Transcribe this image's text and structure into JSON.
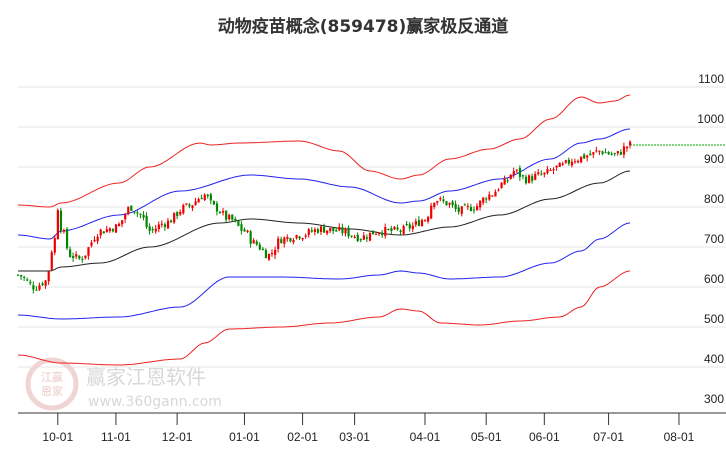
{
  "chart_data": {
    "type": "candlestick",
    "title": "动物疫苗概念(859478)赢家极反通道",
    "xlabel": "",
    "ylabel": "",
    "ylim": [
      300,
      1100
    ],
    "yticks": [
      300,
      400,
      500,
      600,
      700,
      800,
      900,
      1000,
      1100
    ],
    "x_unit": "trading day index",
    "xlim": [
      0,
      230
    ],
    "xticks": [
      {
        "label": "10-01",
        "day": 13
      },
      {
        "label": "11-01",
        "day": 32
      },
      {
        "label": "12-01",
        "day": 52
      },
      {
        "label": "01-01",
        "day": 74
      },
      {
        "label": "02-01",
        "day": 93
      },
      {
        "label": "03-01",
        "day": 110
      },
      {
        "label": "04-01",
        "day": 133
      },
      {
        "label": "05-01",
        "day": 153
      },
      {
        "label": "06-01",
        "day": 172
      },
      {
        "label": "07-01",
        "day": 193
      },
      {
        "label": "08-01",
        "day": 216
      }
    ],
    "grid": true,
    "close_keypoints": [
      [
        0,
        630
      ],
      [
        5.5,
        600
      ],
      [
        9,
        615
      ],
      [
        12,
        720
      ],
      [
        13,
        800
      ],
      [
        14,
        750
      ],
      [
        17,
        680
      ],
      [
        20,
        670
      ],
      [
        27,
        740
      ],
      [
        32,
        750
      ],
      [
        37,
        800
      ],
      [
        40,
        780
      ],
      [
        43,
        740
      ],
      [
        48,
        760
      ],
      [
        55,
        800
      ],
      [
        61,
        830
      ],
      [
        64,
        800
      ],
      [
        69,
        770
      ],
      [
        74,
        740
      ],
      [
        77,
        710
      ],
      [
        82,
        680
      ],
      [
        86,
        720
      ],
      [
        92,
        730
      ],
      [
        99,
        745
      ],
      [
        105,
        740
      ],
      [
        112,
        725
      ],
      [
        118,
        740
      ],
      [
        125,
        740
      ],
      [
        128,
        750
      ],
      [
        133,
        770
      ],
      [
        136,
        820
      ],
      [
        140,
        810
      ],
      [
        144,
        790
      ],
      [
        149,
        800
      ],
      [
        154,
        830
      ],
      [
        159,
        860
      ],
      [
        162,
        890
      ],
      [
        166,
        870
      ],
      [
        171,
        880
      ],
      [
        177,
        900
      ],
      [
        182,
        920
      ],
      [
        187,
        930
      ],
      [
        190,
        940
      ],
      [
        195,
        930
      ],
      [
        200,
        955
      ]
    ],
    "last_price_line": 955,
    "series": [
      {
        "name": "upper-red",
        "color": "#ee2222",
        "points": [
          [
            0,
            805
          ],
          [
            10.5,
            800
          ],
          [
            14,
            810
          ],
          [
            33,
            860
          ],
          [
            43,
            900
          ],
          [
            59.5,
            960
          ],
          [
            63,
            955
          ],
          [
            72.5,
            960
          ],
          [
            92,
            965
          ],
          [
            105,
            940
          ],
          [
            115,
            890
          ],
          [
            125,
            870
          ],
          [
            131,
            880
          ],
          [
            141,
            920
          ],
          [
            154,
            945
          ],
          [
            164,
            970
          ],
          [
            174,
            1020
          ],
          [
            184,
            1075
          ],
          [
            190,
            1060
          ],
          [
            195,
            1065
          ],
          [
            200,
            1080
          ]
        ]
      },
      {
        "name": "upper-blue",
        "color": "#2222ee",
        "points": [
          [
            0,
            730
          ],
          [
            10.5,
            720
          ],
          [
            14,
            740
          ],
          [
            33,
            780
          ],
          [
            53,
            840
          ],
          [
            76,
            880
          ],
          [
            92,
            870
          ],
          [
            108.5,
            850
          ],
          [
            125,
            810
          ],
          [
            131,
            815
          ],
          [
            141,
            840
          ],
          [
            157.5,
            870
          ],
          [
            174,
            920
          ],
          [
            184,
            960
          ],
          [
            190,
            970
          ],
          [
            200,
            995
          ]
        ]
      },
      {
        "name": "middle-black",
        "color": "#222222",
        "points": [
          [
            0,
            640
          ],
          [
            10.5,
            640
          ],
          [
            14,
            650
          ],
          [
            27,
            660
          ],
          [
            43,
            700
          ],
          [
            66,
            760
          ],
          [
            76,
            770
          ],
          [
            92,
            760
          ],
          [
            108.5,
            745
          ],
          [
            125,
            730
          ],
          [
            141,
            750
          ],
          [
            157.5,
            780
          ],
          [
            174,
            820
          ],
          [
            190,
            860
          ],
          [
            200,
            890
          ]
        ]
      },
      {
        "name": "lower-blue",
        "color": "#2222ee",
        "points": [
          [
            0,
            530
          ],
          [
            14,
            520
          ],
          [
            33,
            525
          ],
          [
            53,
            550
          ],
          [
            69,
            625
          ],
          [
            86,
            625
          ],
          [
            105,
            620
          ],
          [
            118,
            630
          ],
          [
            125,
            640
          ],
          [
            131,
            635
          ],
          [
            141,
            620
          ],
          [
            157.5,
            625
          ],
          [
            174,
            660
          ],
          [
            184,
            690
          ],
          [
            190,
            720
          ],
          [
            200,
            760
          ]
        ]
      },
      {
        "name": "lower-red",
        "color": "#ee2222",
        "points": [
          [
            0,
            430
          ],
          [
            14,
            410
          ],
          [
            33,
            405
          ],
          [
            53,
            420
          ],
          [
            61,
            460
          ],
          [
            69,
            495
          ],
          [
            86,
            500
          ],
          [
            102,
            510
          ],
          [
            118,
            525
          ],
          [
            125,
            545
          ],
          [
            131,
            540
          ],
          [
            138,
            510
          ],
          [
            151,
            505
          ],
          [
            164,
            515
          ],
          [
            177,
            525
          ],
          [
            184,
            550
          ],
          [
            190,
            600
          ],
          [
            200,
            640
          ]
        ]
      }
    ],
    "colors": {
      "up": "#ee0000",
      "down": "#008800",
      "last_line": "#00aa00"
    }
  },
  "watermark": {
    "brand": "赢家江恩软件",
    "url": "www.360gann.com",
    "logo_text": "江赢恩家"
  }
}
